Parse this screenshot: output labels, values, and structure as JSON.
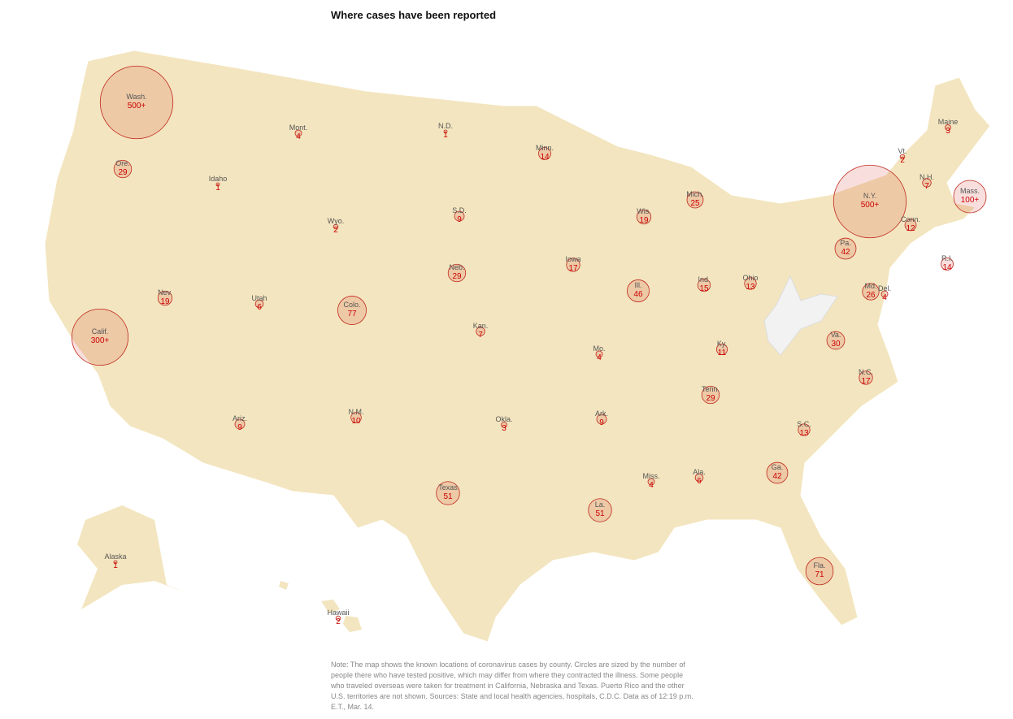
{
  "title": "Where cases have been reported",
  "states": {
    "names": [
      "Wash.",
      "Mont.",
      "N.D.",
      "Minn.",
      "Maine",
      "Vt.",
      "N.H.",
      "Mass.",
      "N.Y.",
      "Conn.",
      "R.I.",
      "Ore.",
      "Idaho",
      "Wyo.",
      "S.D.",
      "Wis.",
      "Mich.",
      "Pa.",
      "Neb.",
      "Iowa",
      "Ill.",
      "Ind.",
      "Ohio",
      "Md.",
      "Del.",
      "Nev.",
      "Utah",
      "Colo.",
      "Calif.",
      "Kan.",
      "Mo.",
      "Va.",
      "Ky.",
      "N.C.",
      "Tenn.",
      "Ariz.",
      "N.M.",
      "Okla.",
      "Ark.",
      "S.C.",
      "Miss.",
      "Ala.",
      "Ga.",
      "Texas",
      "La.",
      "Fla.",
      "Alaska",
      "Hawaii"
    ],
    "values": [
      500,
      4,
      1,
      14,
      3,
      2,
      7,
      100,
      500,
      12,
      14,
      29,
      1,
      2,
      9,
      19,
      25,
      42,
      29,
      17,
      46,
      15,
      13,
      26,
      4,
      19,
      6,
      77,
      300,
      7,
      4,
      30,
      11,
      17,
      29,
      9,
      10,
      3,
      9,
      13,
      4,
      6,
      42,
      51,
      51,
      71,
      1,
      2
    ],
    "value_labels": [
      "500+",
      "4",
      "1",
      "14",
      "3",
      "2",
      "7",
      "100+",
      "500+",
      "12",
      "14",
      "29",
      "1",
      "2",
      "9",
      "19",
      "25",
      "42",
      "29",
      "17",
      "46",
      "15",
      "13",
      "26",
      "4",
      "19",
      "6",
      "77",
      "300+",
      "7",
      "4",
      "30",
      "11",
      "17",
      "29",
      "9",
      "10",
      "3",
      "9",
      "13",
      "4",
      "6",
      "42",
      "51",
      "51",
      "71",
      "1",
      "2"
    ]
  },
  "note": "Note: The map shows the known locations of coronavirus cases by county. Circles are sized by the number of people there who have tested positive, which may differ from where they contracted the illness. Some people who traveled overseas were taken for treatment in California, Nebraska and Texas. Puerto Rico and the other U.S. territories are not shown. Sources: State and local health agencies, hospitals, C.D.C. Data as of 12:19 p.m. E.T., Mar. 14."
}
